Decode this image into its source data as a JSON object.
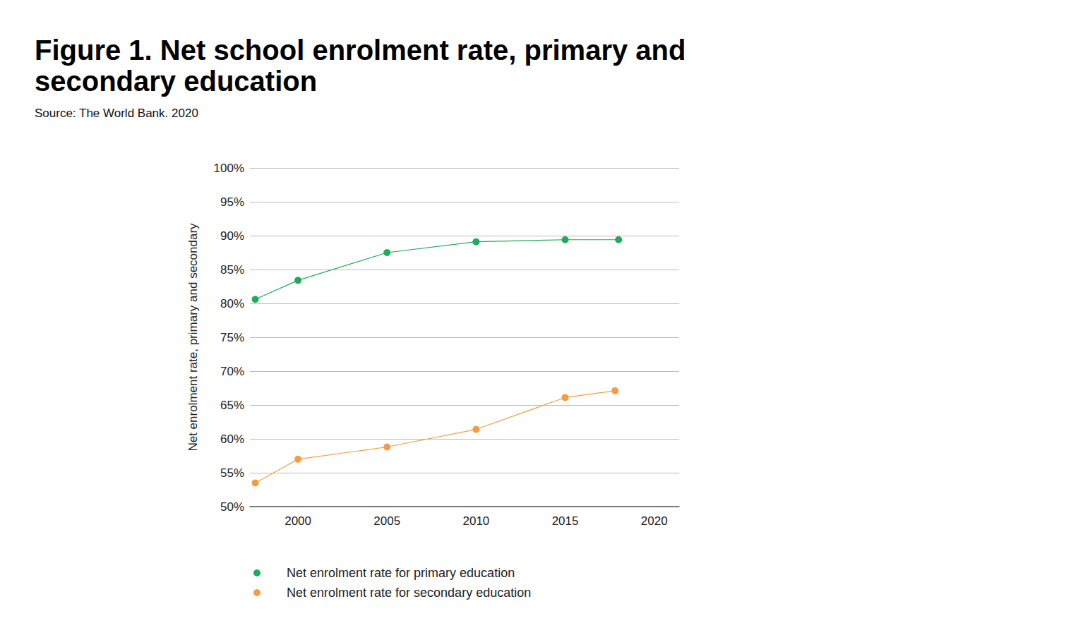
{
  "chart_data": {
    "type": "line",
    "title": "Figure 1. Net school enrolment rate, primary and secondary education",
    "subtitle": "Source: The World Bank. 2020",
    "ylabel": "Net enrolment rate, primary and secondary",
    "xlim": [
      1997.3,
      2021.4
    ],
    "xticks": [
      2000,
      2005,
      2010,
      2015,
      2020
    ],
    "ylim": [
      50,
      100
    ],
    "yticks": [
      {
        "value": 50,
        "label": "50%"
      },
      {
        "value": 55,
        "label": "55%"
      },
      {
        "value": 60,
        "label": "60%"
      },
      {
        "value": 65,
        "label": "65%"
      },
      {
        "value": 70,
        "label": "70%"
      },
      {
        "value": 75,
        "label": "75%"
      },
      {
        "value": 80,
        "label": "80%"
      },
      {
        "value": 85,
        "label": "85%"
      },
      {
        "value": 90,
        "label": "90%"
      },
      {
        "value": 95,
        "label": "95%"
      },
      {
        "value": 100,
        "label": "100%"
      }
    ],
    "grid": true,
    "legend": "bottom",
    "marker": "circle",
    "series": [
      {
        "name": "Net enrolment rate for primary education",
        "color": "#1fab57",
        "x": [
          1997.6,
          2000,
          2005,
          2010,
          2015,
          2018
        ],
        "values": [
          80.6,
          83.4,
          87.5,
          89.1,
          89.4,
          89.4
        ]
      },
      {
        "name": "Net enrolment rate for secondary education",
        "color": "#f39c44",
        "x": [
          1997.6,
          2000,
          2005,
          2010,
          2015,
          2017.8
        ],
        "values": [
          53.5,
          57.0,
          58.8,
          61.4,
          66.1,
          67.1
        ]
      }
    ]
  }
}
